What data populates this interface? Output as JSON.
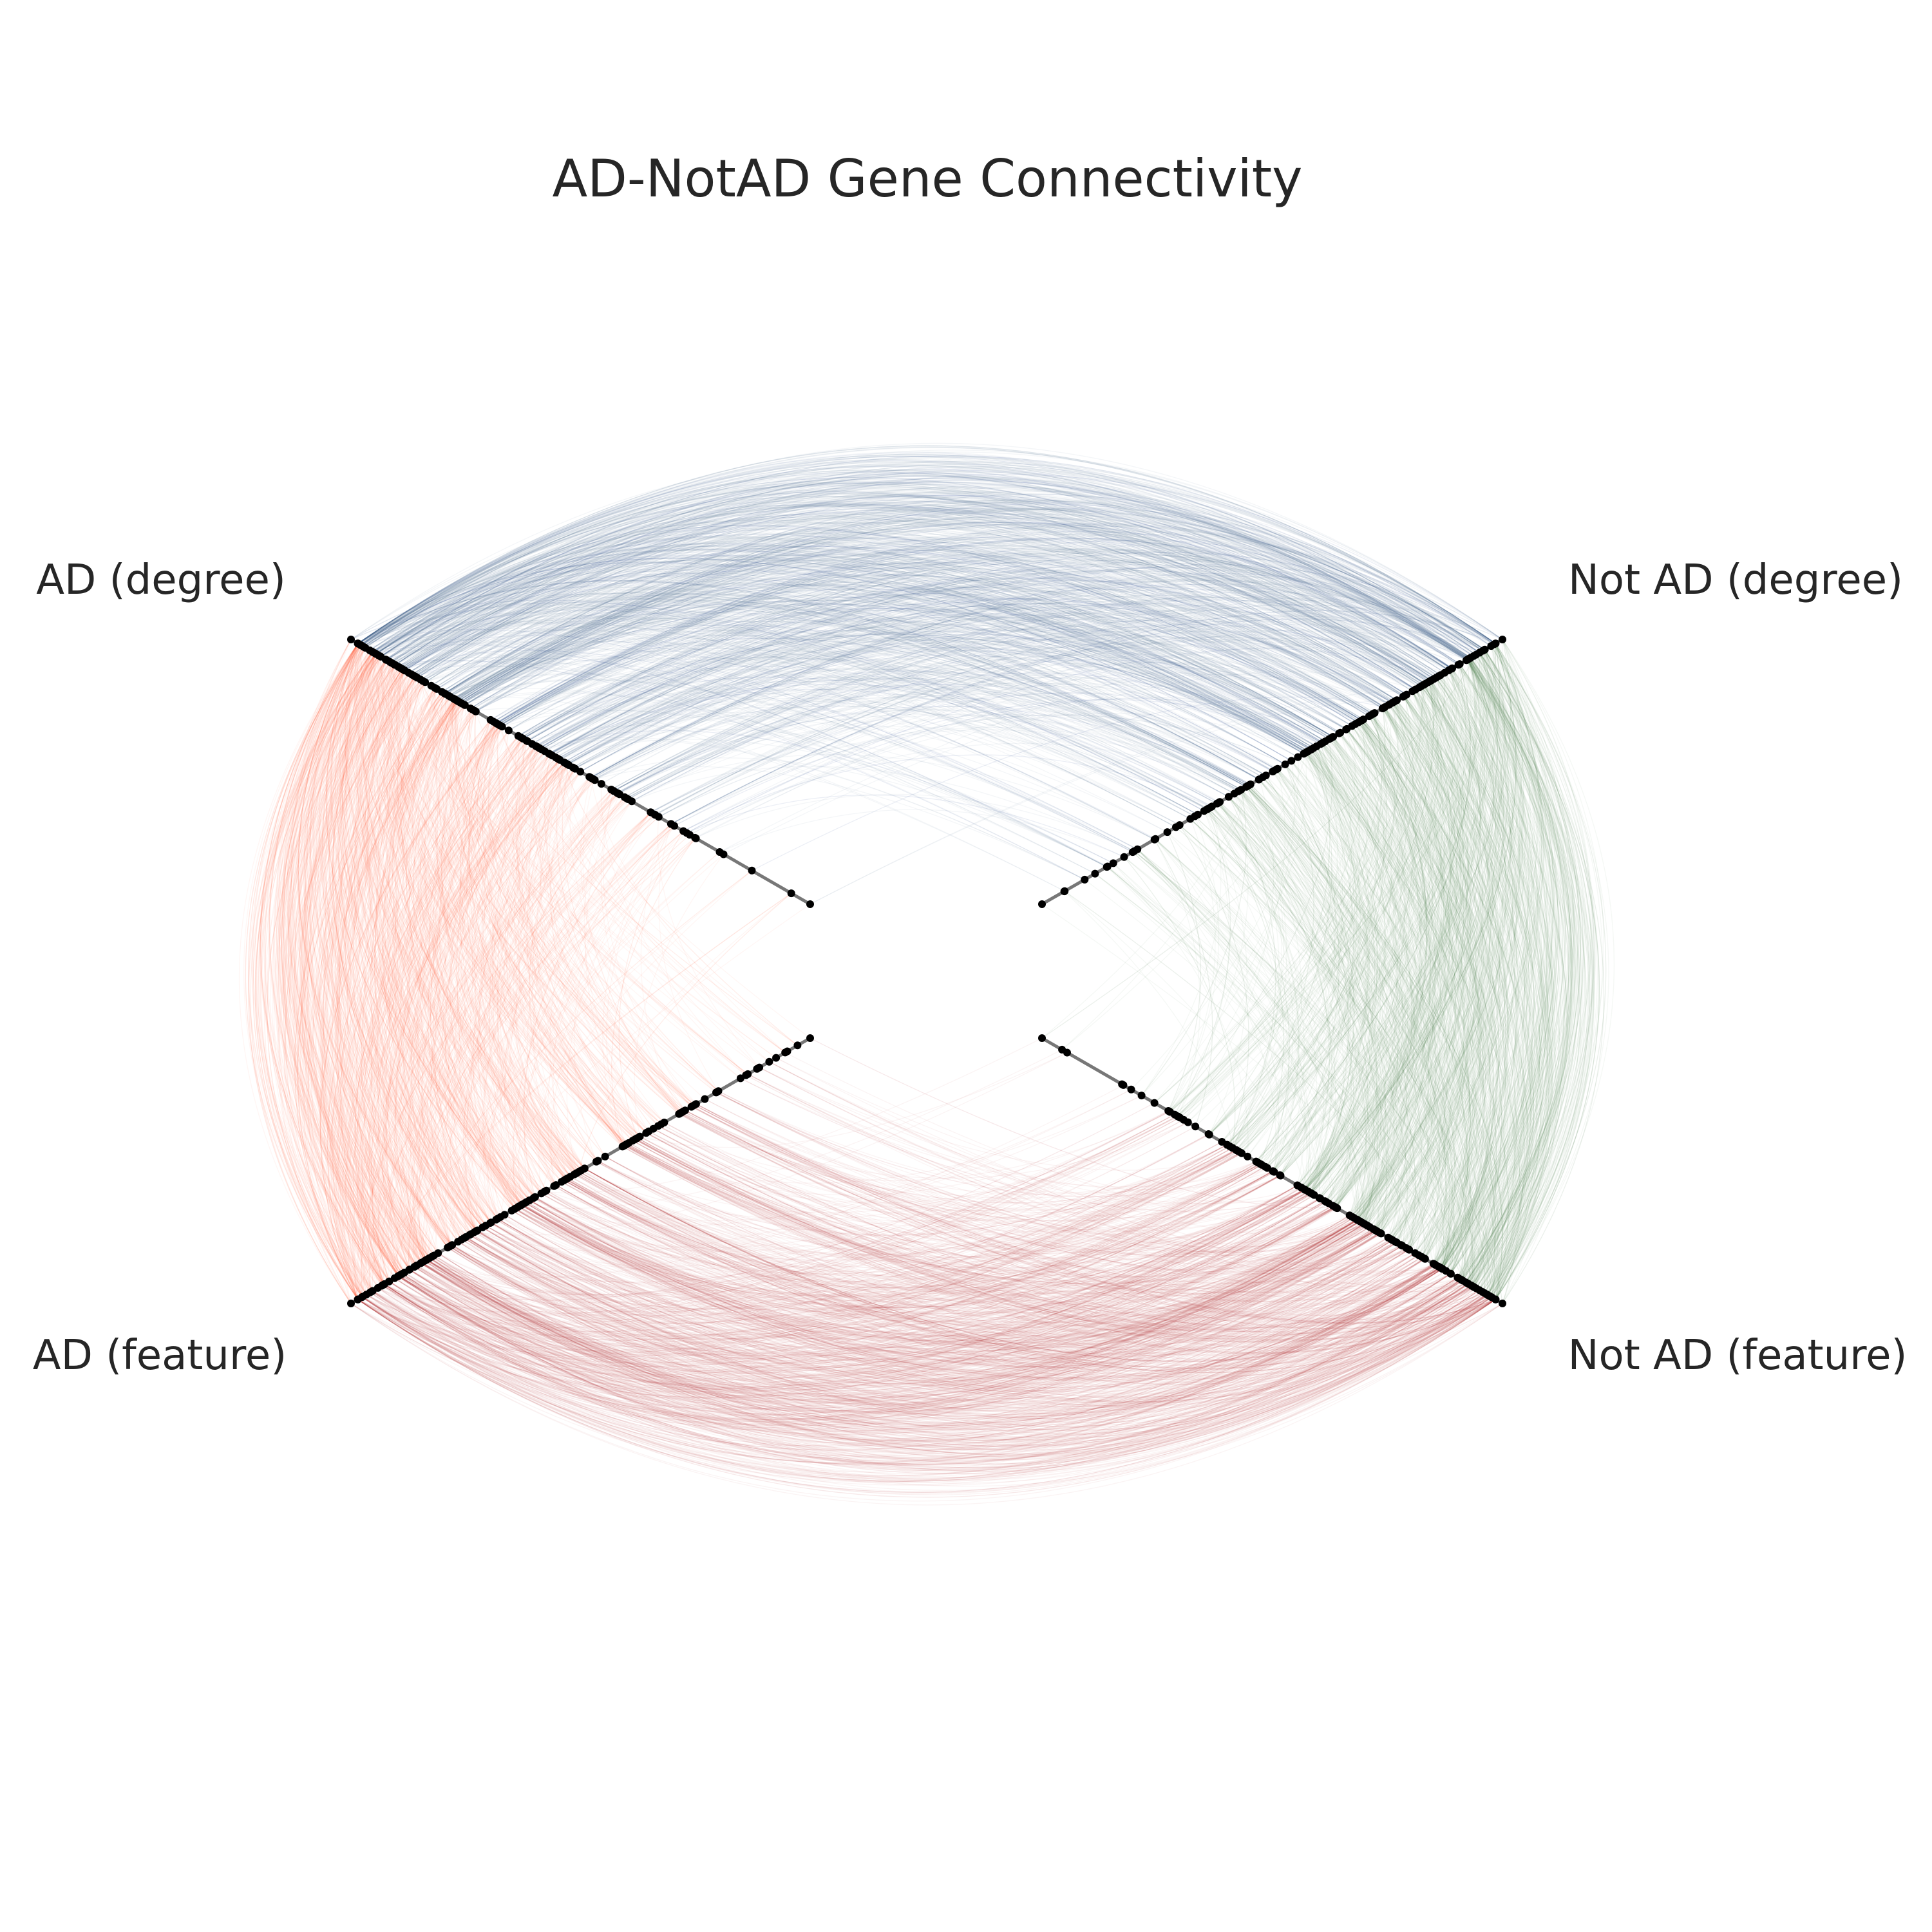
{
  "chart_data": {
    "type": "hive_plot",
    "title": "AD-NotAD Gene Connectivity",
    "axes": [
      {
        "id": "ad_degree",
        "label": "AD (degree)",
        "direction": "upper-left"
      },
      {
        "id": "notad_degree",
        "label": "Not AD (degree)",
        "direction": "upper-right"
      },
      {
        "id": "ad_feature",
        "label": "AD (feature)",
        "direction": "lower-left"
      },
      {
        "id": "notad_feature",
        "label": "Not AD (feature)",
        "direction": "lower-right"
      }
    ],
    "edge_groups": [
      {
        "from": "ad_degree",
        "to": "notad_degree",
        "color": "#4a6a8a",
        "accent": "#3a55a0"
      },
      {
        "from": "ad_degree",
        "to": "ad_feature",
        "color": "#ff6a45",
        "accent": "#ff5a30"
      },
      {
        "from": "notad_degree",
        "to": "notad_feature",
        "color": "#5a8a5a",
        "accent": "#3f6f3f"
      },
      {
        "from": "ad_feature",
        "to": "notad_feature",
        "color": "#c0444a",
        "accent": "#b02a30"
      }
    ],
    "node_color": "#000000",
    "axis_line_color": "#777777",
    "grid": false,
    "legend": false
  }
}
